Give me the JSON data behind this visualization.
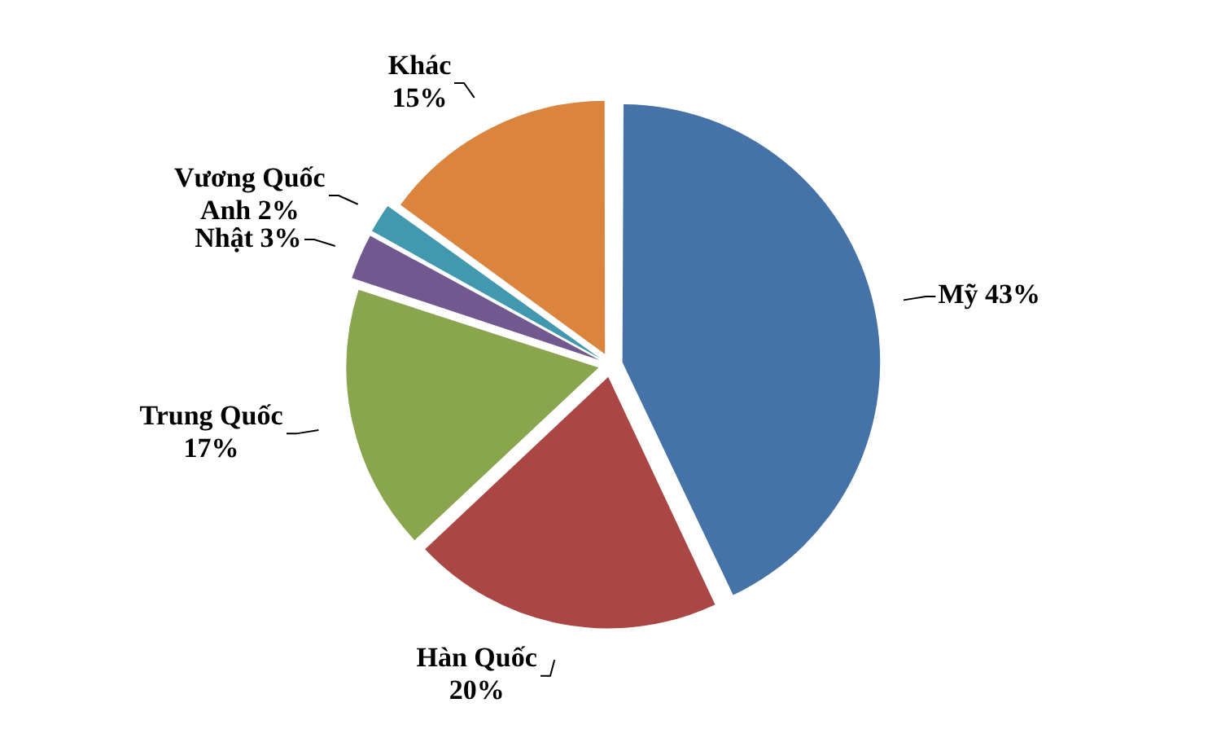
{
  "chart_data": {
    "type": "pie",
    "categories": [
      "Mỹ",
      "Hàn Quốc",
      "Trung Quốc",
      "Nhật",
      "Vương Quốc Anh",
      "Khác"
    ],
    "values": [
      43,
      20,
      17,
      3,
      2,
      15
    ],
    "value_labels": [
      "43%",
      "20%",
      "17%",
      "3%",
      "2%",
      "15%"
    ],
    "colors": [
      "#4572a7",
      "#aa4643",
      "#89a54e",
      "#71588f",
      "#4198af",
      "#db843d"
    ],
    "legend": false
  }
}
